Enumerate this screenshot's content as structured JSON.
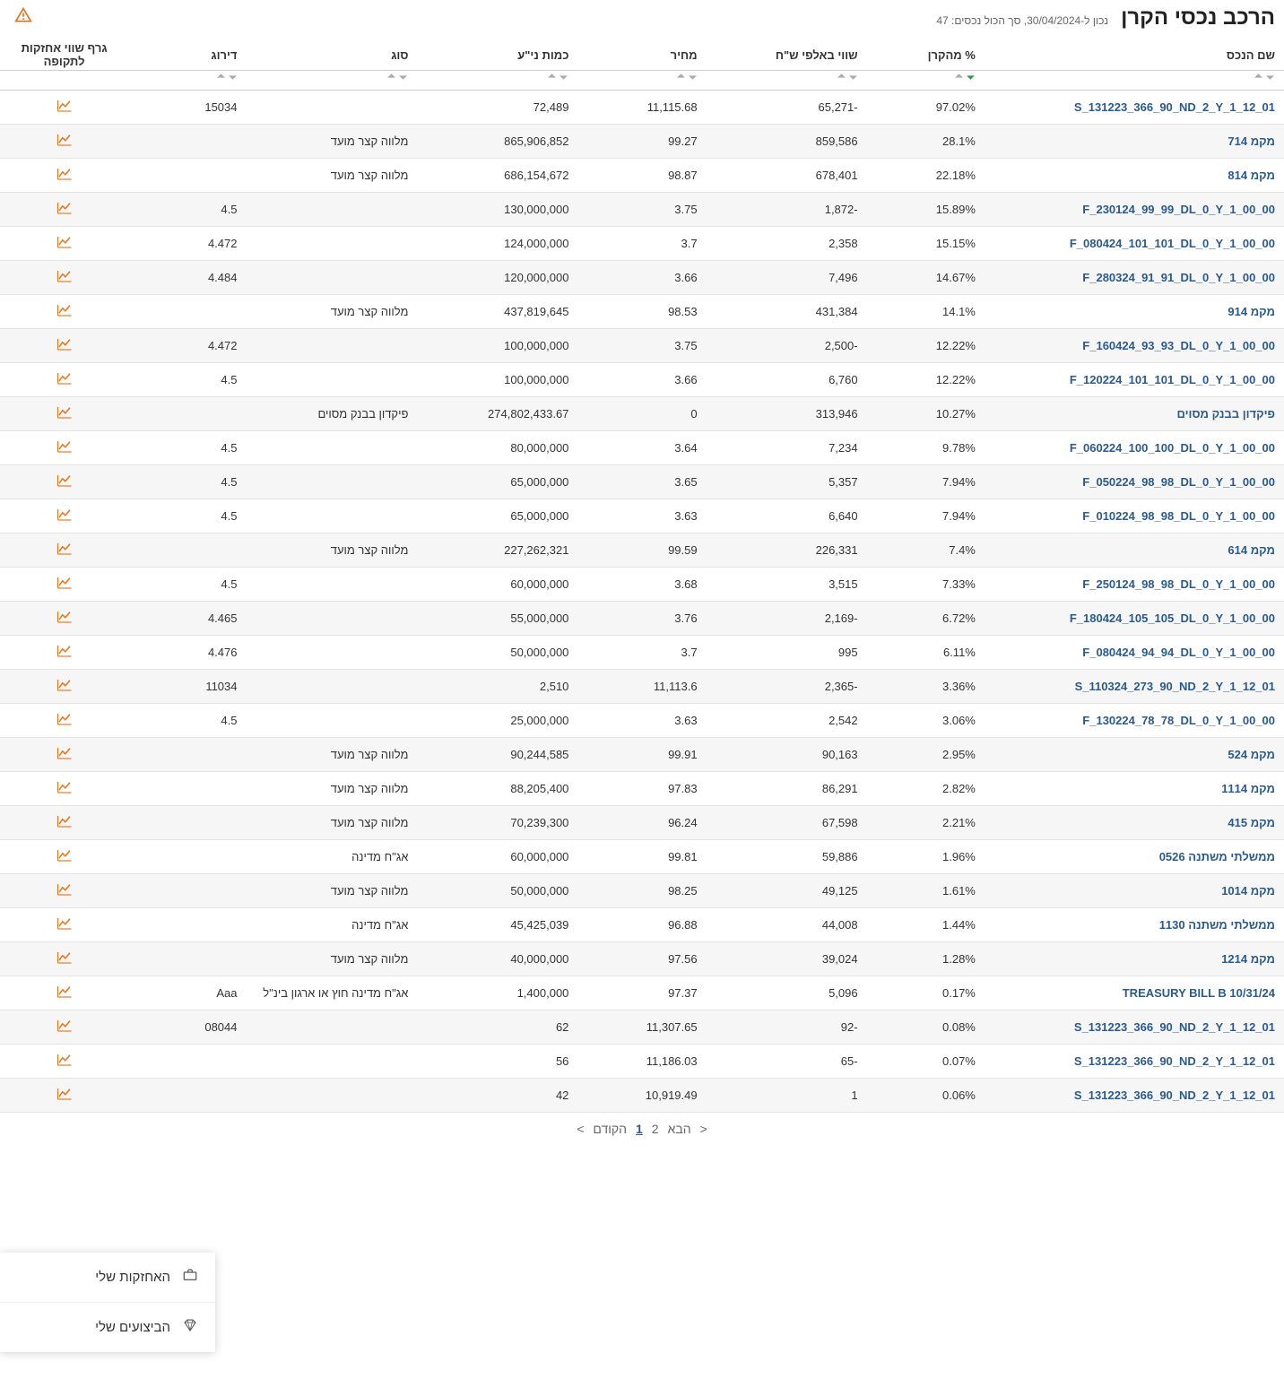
{
  "title": "הרכב נכסי הקרן",
  "caption_prefix": "נכון ל-",
  "caption_date": "30/04/2024",
  "caption_sep": ", ",
  "caption_total_label": "סך הכול נכסים: ",
  "caption_total": "47",
  "columns": {
    "name": "שם הנכס",
    "pct": "% מהקרן",
    "value": "שווי באלפי ש\"ח",
    "price": "מחיר",
    "qty": "כמות ני\"ע",
    "type": "סוג",
    "rating": "דירוג",
    "graph": "גרף שווי אחזקות לתקופה"
  },
  "sorted_col": "pct",
  "rows": [
    {
      "name": "S_131223_366_90_ND_2_Y_1_12_01",
      "pct": "97.02%",
      "value": "-65,271",
      "price": "11,115.68",
      "qty": "72,489",
      "type": "",
      "rating": "15034"
    },
    {
      "name": "מקמ 714",
      "pct": "28.1%",
      "value": "859,586",
      "price": "99.27",
      "qty": "865,906,852",
      "type": "מלווה קצר מועד",
      "rating": ""
    },
    {
      "name": "מקמ 814",
      "pct": "22.18%",
      "value": "678,401",
      "price": "98.87",
      "qty": "686,154,672",
      "type": "מלווה קצר מועד",
      "rating": ""
    },
    {
      "name": "F_230124_99_99_DL_0_Y_1_00_00",
      "pct": "15.89%",
      "value": "-1,872",
      "price": "3.75",
      "qty": "130,000,000",
      "type": "",
      "rating": "4.5"
    },
    {
      "name": "F_080424_101_101_DL_0_Y_1_00_00",
      "pct": "15.15%",
      "value": "2,358",
      "price": "3.7",
      "qty": "124,000,000",
      "type": "",
      "rating": "4.472"
    },
    {
      "name": "F_280324_91_91_DL_0_Y_1_00_00",
      "pct": "14.67%",
      "value": "7,496",
      "price": "3.66",
      "qty": "120,000,000",
      "type": "",
      "rating": "4.484"
    },
    {
      "name": "מקמ 914",
      "pct": "14.1%",
      "value": "431,384",
      "price": "98.53",
      "qty": "437,819,645",
      "type": "מלווה קצר מועד",
      "rating": ""
    },
    {
      "name": "F_160424_93_93_DL_0_Y_1_00_00",
      "pct": "12.22%",
      "value": "-2,500",
      "price": "3.75",
      "qty": "100,000,000",
      "type": "",
      "rating": "4.472"
    },
    {
      "name": "F_120224_101_101_DL_0_Y_1_00_00",
      "pct": "12.22%",
      "value": "6,760",
      "price": "3.66",
      "qty": "100,000,000",
      "type": "",
      "rating": "4.5"
    },
    {
      "name": "פיקדון בבנק מסוים",
      "pct": "10.27%",
      "value": "313,946",
      "price": "0",
      "qty": "274,802,433.67",
      "type": "פיקדון בבנק מסוים",
      "rating": ""
    },
    {
      "name": "F_060224_100_100_DL_0_Y_1_00_00",
      "pct": "9.78%",
      "value": "7,234",
      "price": "3.64",
      "qty": "80,000,000",
      "type": "",
      "rating": "4.5"
    },
    {
      "name": "F_050224_98_98_DL_0_Y_1_00_00",
      "pct": "7.94%",
      "value": "5,357",
      "price": "3.65",
      "qty": "65,000,000",
      "type": "",
      "rating": "4.5"
    },
    {
      "name": "F_010224_98_98_DL_0_Y_1_00_00",
      "pct": "7.94%",
      "value": "6,640",
      "price": "3.63",
      "qty": "65,000,000",
      "type": "",
      "rating": "4.5"
    },
    {
      "name": "מקמ 614",
      "pct": "7.4%",
      "value": "226,331",
      "price": "99.59",
      "qty": "227,262,321",
      "type": "מלווה קצר מועד",
      "rating": ""
    },
    {
      "name": "F_250124_98_98_DL_0_Y_1_00_00",
      "pct": "7.33%",
      "value": "3,515",
      "price": "3.68",
      "qty": "60,000,000",
      "type": "",
      "rating": "4.5"
    },
    {
      "name": "F_180424_105_105_DL_0_Y_1_00_00",
      "pct": "6.72%",
      "value": "-2,169",
      "price": "3.76",
      "qty": "55,000,000",
      "type": "",
      "rating": "4.465"
    },
    {
      "name": "F_080424_94_94_DL_0_Y_1_00_00",
      "pct": "6.11%",
      "value": "995",
      "price": "3.7",
      "qty": "50,000,000",
      "type": "",
      "rating": "4.476"
    },
    {
      "name": "S_110324_273_90_ND_2_Y_1_12_01",
      "pct": "3.36%",
      "value": "-2,365",
      "price": "11,113.6",
      "qty": "2,510",
      "type": "",
      "rating": "11034"
    },
    {
      "name": "F_130224_78_78_DL_0_Y_1_00_00",
      "pct": "3.06%",
      "value": "2,542",
      "price": "3.63",
      "qty": "25,000,000",
      "type": "",
      "rating": "4.5"
    },
    {
      "name": "מקמ 524",
      "pct": "2.95%",
      "value": "90,163",
      "price": "99.91",
      "qty": "90,244,585",
      "type": "מלווה קצר מועד",
      "rating": ""
    },
    {
      "name": "מקמ 1114",
      "pct": "2.82%",
      "value": "86,291",
      "price": "97.83",
      "qty": "88,205,400",
      "type": "מלווה קצר מועד",
      "rating": ""
    },
    {
      "name": "מקמ 415",
      "pct": "2.21%",
      "value": "67,598",
      "price": "96.24",
      "qty": "70,239,300",
      "type": "מלווה קצר מועד",
      "rating": ""
    },
    {
      "name": "ממשלתי משתנה 0526",
      "pct": "1.96%",
      "value": "59,886",
      "price": "99.81",
      "qty": "60,000,000",
      "type": "אג\"ח מדינה",
      "rating": ""
    },
    {
      "name": "מקמ 1014",
      "pct": "1.61%",
      "value": "49,125",
      "price": "98.25",
      "qty": "50,000,000",
      "type": "מלווה קצר מועד",
      "rating": ""
    },
    {
      "name": "ממשלתי משתנה 1130",
      "pct": "1.44%",
      "value": "44,008",
      "price": "96.88",
      "qty": "45,425,039",
      "type": "אג\"ח מדינה",
      "rating": ""
    },
    {
      "name": "מקמ 1214",
      "pct": "1.28%",
      "value": "39,024",
      "price": "97.56",
      "qty": "40,000,000",
      "type": "מלווה קצר מועד",
      "rating": ""
    },
    {
      "name": "TREASURY BILL B 10/31/24",
      "pct": "0.17%",
      "value": "5,096",
      "price": "97.37",
      "qty": "1,400,000",
      "type": "אג\"ח מדינה חוץ או ארגון בינ\"ל",
      "rating": "Aaa"
    },
    {
      "name": "S_131223_366_90_ND_2_Y_1_12_01",
      "pct": "0.08%",
      "value": "-92",
      "price": "11,307.65",
      "qty": "62",
      "type": "",
      "rating": "08044"
    },
    {
      "name": "S_131223_366_90_ND_2_Y_1_12_01",
      "pct": "0.07%",
      "value": "-65",
      "price": "11,186.03",
      "qty": "56",
      "type": "",
      "rating": ""
    },
    {
      "name": "S_131223_366_90_ND_2_Y_1_12_01",
      "pct": "0.06%",
      "value": "1",
      "price": "10,919.49",
      "qty": "42",
      "type": "",
      "rating": ""
    }
  ],
  "pagination": {
    "prev_chev": ">",
    "prev": "הקודם",
    "p1": "1",
    "p2": "2",
    "next": "הבא",
    "next_chev": "<"
  },
  "floating": {
    "holdings": "האחזקות שלי",
    "performance": "הביצועים שלי"
  },
  "colors": {
    "link": "#2b5a8c",
    "accent": "#e8731a",
    "sort_active": "#2a9c3f"
  }
}
